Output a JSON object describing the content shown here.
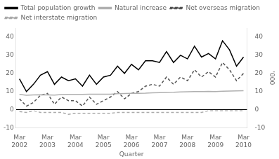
{
  "chart_data": {
    "type": "line",
    "xlabel": "Quarter",
    "y2label": "'000",
    "categories": [
      "Mar\n2002",
      null,
      null,
      null,
      "Mar\n2003",
      null,
      null,
      null,
      "Mar\n2004",
      null,
      null,
      null,
      "Mar\n2005",
      null,
      null,
      null,
      "Mar\n2006",
      null,
      null,
      null,
      "Mar\n2007",
      null,
      null,
      null,
      "Mar\n2008",
      null,
      null,
      null,
      "Mar\n2009",
      null,
      null,
      null,
      "Mar\n2010"
    ],
    "series": [
      {
        "name": "Total population growth",
        "color": "#000000",
        "line_style": "solid",
        "values": [
          17,
          10,
          14,
          19,
          21,
          14,
          18,
          16,
          17,
          13,
          19,
          14,
          18,
          19,
          24,
          20,
          25,
          22,
          27,
          27,
          26,
          32,
          26,
          30,
          28,
          35,
          29,
          31,
          28,
          38,
          33,
          24,
          29
        ]
      },
      {
        "name": "Natural increase",
        "color": "#b0b0b0",
        "line_style": "solid",
        "values": [
          8.5,
          8.0,
          8.2,
          8.3,
          8.2,
          8.1,
          8.4,
          8.5,
          8.5,
          8.5,
          8.6,
          8.6,
          8.6,
          8.6,
          8.8,
          8.9,
          9.0,
          9.0,
          9.1,
          9.3,
          9.4,
          9.5,
          9.6,
          9.8,
          9.9,
          10.0,
          10.0,
          10.1,
          10.0,
          10.2,
          10.3,
          10.4,
          10.5
        ]
      },
      {
        "name": "Net overseas migration",
        "color": "#555555",
        "line_style": "dashed",
        "values": [
          6,
          2,
          4,
          8,
          9,
          3,
          7,
          5,
          5,
          2,
          7,
          3,
          5,
          7,
          10,
          6,
          9,
          10,
          13,
          14,
          13,
          18,
          14,
          18,
          16,
          22,
          18,
          21,
          18,
          26,
          22,
          16,
          20
        ]
      },
      {
        "name": "Net interstate migration",
        "color": "#aaaaaa",
        "line_style": "dashed",
        "values": [
          -1,
          -1.5,
          -0.5,
          -1.5,
          -1.5,
          -1.5,
          -1.5,
          -2.5,
          -2,
          -2,
          -2,
          -2,
          -2,
          -2,
          -1.5,
          -1.5,
          -1.5,
          -1.5,
          -1.5,
          -1.5,
          -1.5,
          -1.5,
          -1.5,
          -1.5,
          -1.5,
          -1.5,
          -1.5,
          -0.5,
          -0.5,
          -0.5,
          -0.5,
          -0.5,
          -0.5
        ]
      }
    ],
    "ylim": [
      -10,
      45
    ],
    "yticks": [
      -10,
      0,
      10,
      20,
      30,
      40
    ],
    "y2lim": [
      -10,
      45
    ],
    "y2ticks": [
      -10,
      0,
      10,
      20,
      30,
      40
    ],
    "grid": false,
    "legend": "upper left"
  }
}
